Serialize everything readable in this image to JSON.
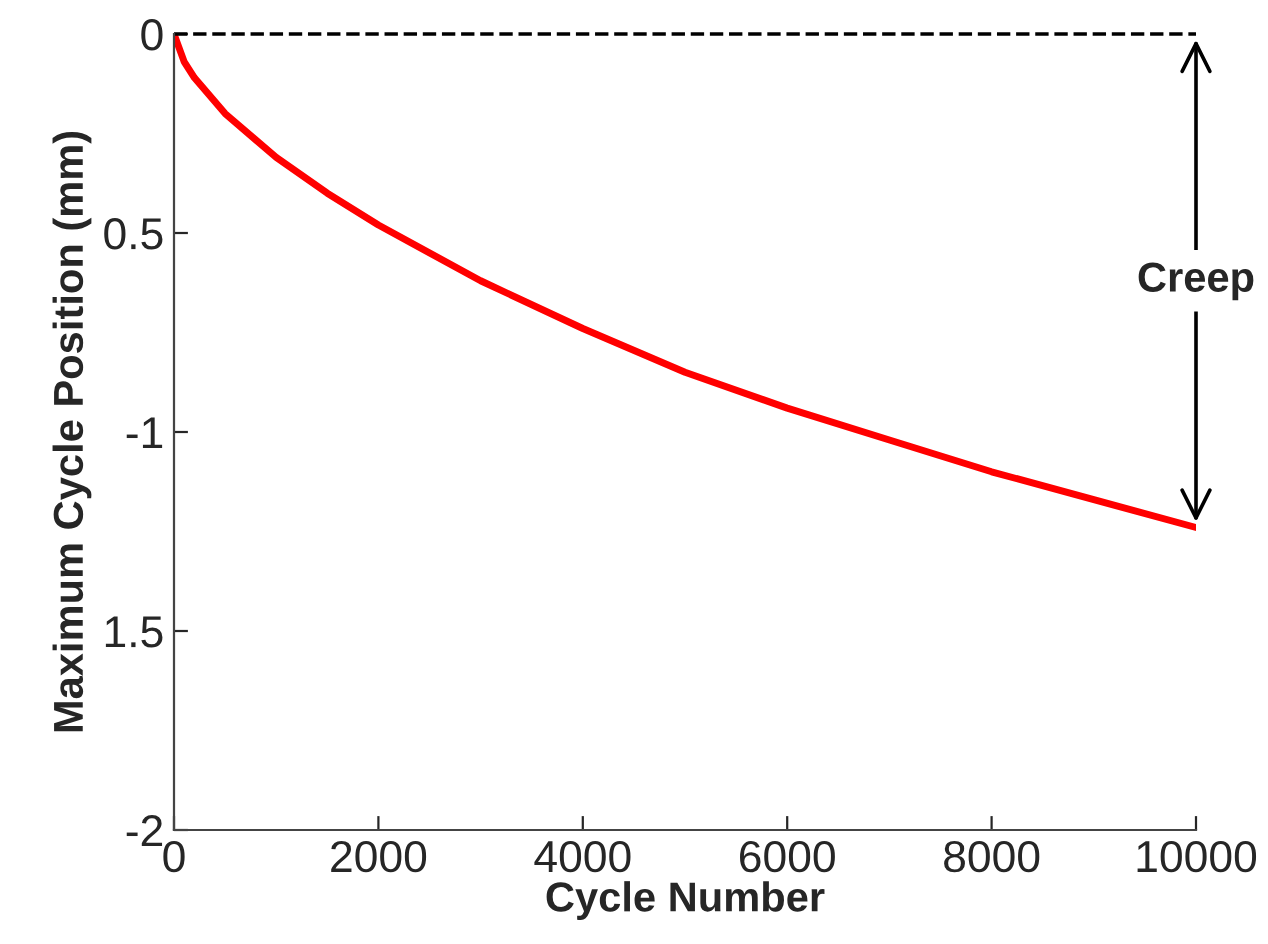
{
  "chart_data": {
    "type": "line",
    "xlabel": "Cycle Number",
    "ylabel": "Maximum Cycle Position (mm)",
    "x": [
      0,
      100,
      200,
      500,
      1000,
      1500,
      2000,
      3000,
      4000,
      5000,
      6000,
      7000,
      8000,
      9000,
      10000
    ],
    "series": [
      {
        "color": "#ff0000",
        "values": [
          0,
          -0.07,
          -0.11,
          -0.2,
          -0.31,
          -0.4,
          -0.48,
          -0.62,
          -0.74,
          -0.85,
          -0.94,
          -1.02,
          -1.1,
          -1.17,
          -1.24
        ]
      }
    ],
    "xlim": [
      0,
      10000
    ],
    "ylim": [
      -2,
      0
    ],
    "xticks": [
      0,
      2000,
      4000,
      6000,
      8000,
      10000
    ],
    "yticks": [
      {
        "value": -2,
        "label": "-2"
      },
      {
        "value": -1.5,
        "label": "1.5"
      },
      {
        "value": -1,
        "label": "-1"
      },
      {
        "value": -0.5,
        "label": "0.5"
      },
      {
        "value": 0,
        "label": "0"
      }
    ],
    "ref_lines": [
      {
        "axis": "y",
        "value": 0,
        "label": null,
        "color": "#000000",
        "line_style": "dashed"
      }
    ],
    "annotations": [
      "Creep"
    ],
    "grid": false,
    "legend": false,
    "marker": "none",
    "line_style": "solid"
  }
}
